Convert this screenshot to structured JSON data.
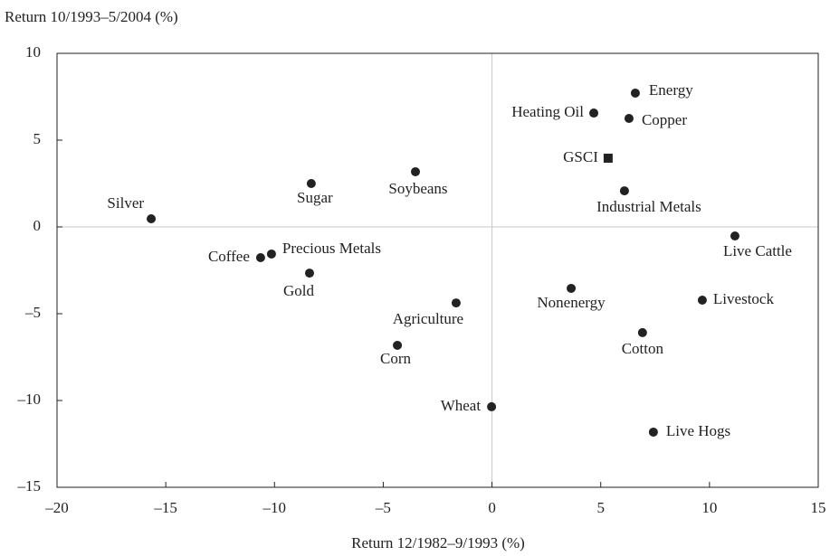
{
  "chart_data": {
    "type": "scatter",
    "xlabel": "Return 12/1982–9/1993 (%)",
    "ylabel": "Return 10/1993–5/2004 (%)",
    "xlim": [
      -20,
      15
    ],
    "ylim": [
      -15,
      10
    ],
    "xticks": [
      {
        "value": -20,
        "label": "–20"
      },
      {
        "value": -15,
        "label": "–15"
      },
      {
        "value": -10,
        "label": "–10"
      },
      {
        "value": -5,
        "label": "–5"
      },
      0,
      5,
      10,
      15
    ],
    "yticks": [
      {
        "value": -15,
        "label": "–15"
      },
      {
        "value": -10,
        "label": "–10"
      },
      {
        "value": -5,
        "label": "–5"
      },
      0,
      5,
      10
    ],
    "zero_lines": true,
    "color": "#222222",
    "points": [
      {
        "label": "Silver",
        "x": -15.67,
        "y": 0.47,
        "marker": "circle"
      },
      {
        "label": "Coffee",
        "x": -10.64,
        "y": -1.77,
        "marker": "circle"
      },
      {
        "label": "Precious Metals",
        "x": -10.14,
        "y": -1.56,
        "marker": "circle"
      },
      {
        "label": "Gold",
        "x": -8.39,
        "y": -2.66,
        "marker": "circle"
      },
      {
        "label": "Sugar",
        "x": -8.31,
        "y": 2.5,
        "marker": "circle"
      },
      {
        "label": "Soybeans",
        "x": -3.52,
        "y": 3.18,
        "marker": "circle"
      },
      {
        "label": "Agriculture",
        "x": -1.65,
        "y": -4.38,
        "marker": "circle"
      },
      {
        "label": "Corn",
        "x": -4.35,
        "y": -6.82,
        "marker": "circle"
      },
      {
        "label": "Wheat",
        "x": -0.02,
        "y": -10.36,
        "marker": "circle"
      },
      {
        "label": "Nonenergy",
        "x": 3.64,
        "y": -3.54,
        "marker": "circle"
      },
      {
        "label": "Heating Oil",
        "x": 4.68,
        "y": 6.56,
        "marker": "circle"
      },
      {
        "label": "Energy",
        "x": 6.59,
        "y": 7.71,
        "marker": "circle"
      },
      {
        "label": "Copper",
        "x": 6.3,
        "y": 6.25,
        "marker": "circle"
      },
      {
        "label": "GSCI",
        "x": 5.34,
        "y": 3.96,
        "marker": "square"
      },
      {
        "label": "Industrial Metals",
        "x": 6.09,
        "y": 2.08,
        "marker": "circle"
      },
      {
        "label": "Live Cattle",
        "x": 11.17,
        "y": -0.52,
        "marker": "circle"
      },
      {
        "label": "Livestock",
        "x": 9.67,
        "y": -4.22,
        "marker": "circle"
      },
      {
        "label": "Cotton",
        "x": 6.92,
        "y": -6.09,
        "marker": "circle"
      },
      {
        "label": "Live Hogs",
        "x": 7.42,
        "y": -11.82,
        "marker": "circle"
      }
    ]
  }
}
